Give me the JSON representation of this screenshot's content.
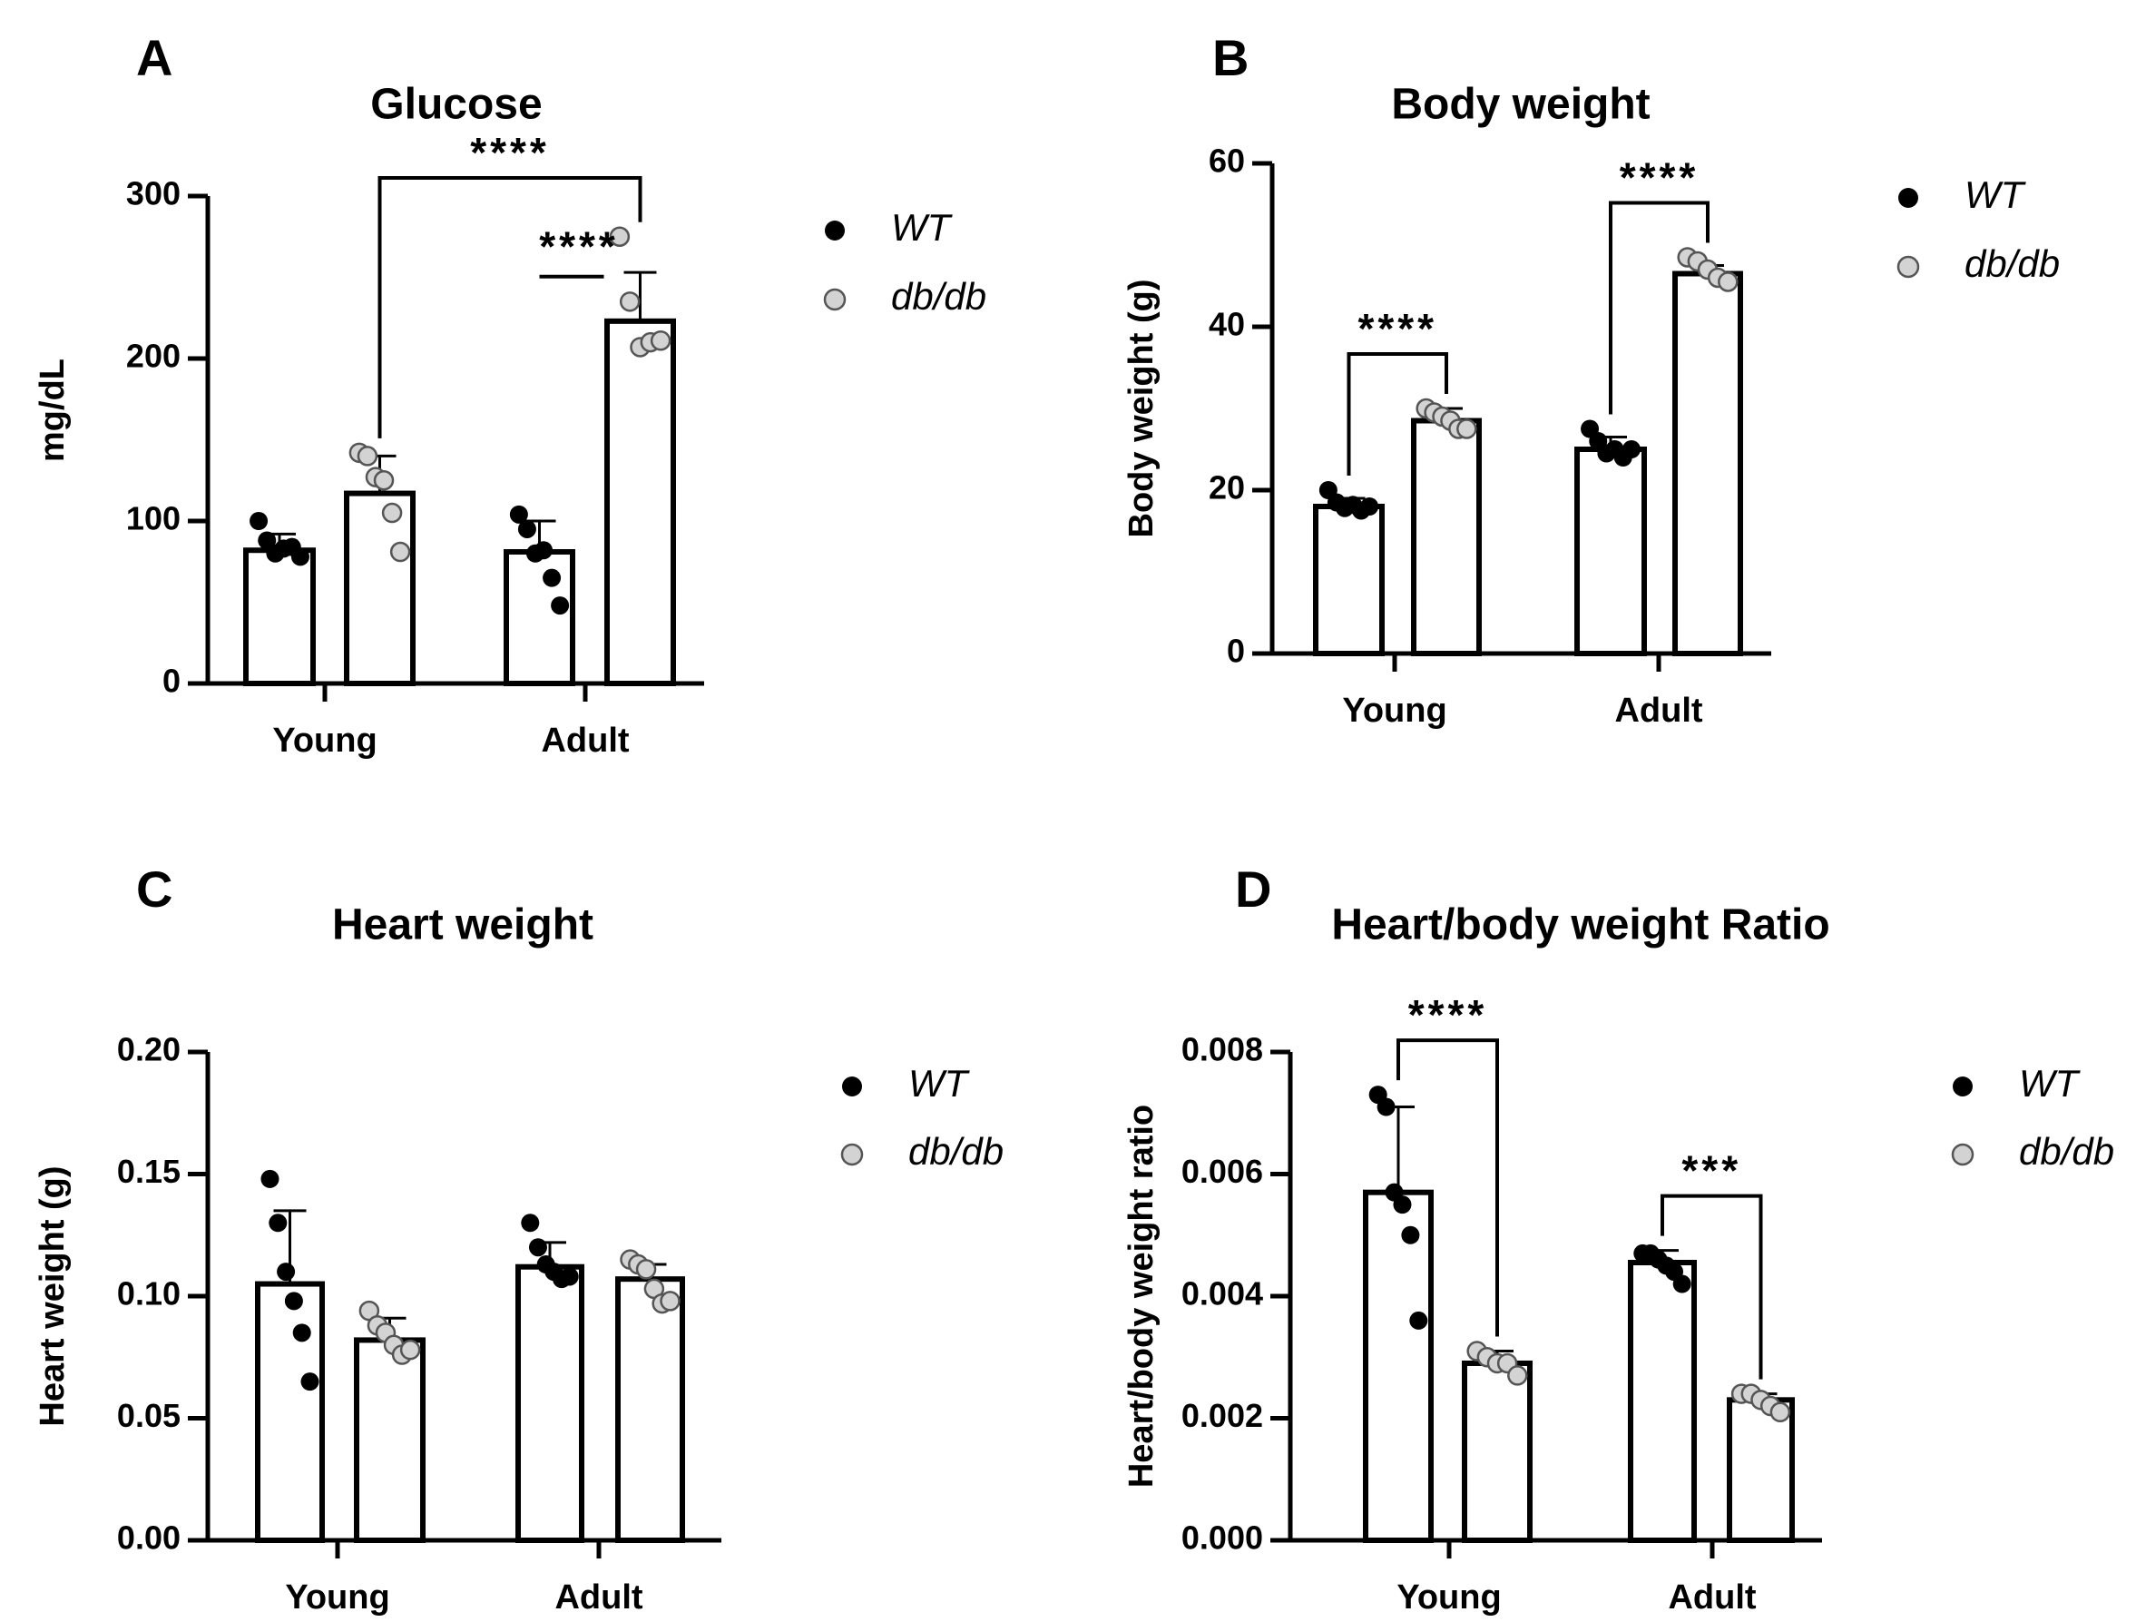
{
  "colors": {
    "wt": "#000000",
    "dbdb": "#d3d3d3",
    "axis": "#000000",
    "bar_fill": "#ffffff"
  },
  "chart_data": [
    {
      "panel": "A",
      "type": "bar",
      "title": "Glucose",
      "ylabel": "mg/dL",
      "ylim": [
        0,
        300
      ],
      "yticks": [
        0,
        100,
        200,
        300
      ],
      "ytick_labels": [
        "0",
        "100",
        "200",
        "300"
      ],
      "categories": [
        "Young",
        "Adult"
      ],
      "legend": "right",
      "series": [
        {
          "name": "WT",
          "values": [
            82,
            81
          ],
          "sd": [
            10,
            19
          ],
          "points": [
            [
              100,
              88,
              80,
              83,
              84,
              78
            ],
            [
              104,
              95,
              80,
              82,
              65,
              48
            ]
          ]
        },
        {
          "name": "db/db",
          "values": [
            117,
            223
          ],
          "sd": [
            23,
            30
          ],
          "points": [
            [
              142,
              140,
              127,
              125,
              105,
              81
            ],
            [
              275,
              235,
              207,
              210,
              211
            ]
          ]
        }
      ],
      "significance": [
        {
          "label": "****",
          "type": "bracket",
          "from": [
            0,
            1
          ],
          "to": [
            1,
            1
          ]
        },
        {
          "label": "****",
          "type": "line",
          "from": [
            1,
            0
          ],
          "to": [
            1,
            1
          ]
        }
      ]
    },
    {
      "panel": "B",
      "type": "bar",
      "title": "Body weight",
      "ylabel": "Body weight (g)",
      "ylim": [
        0,
        60
      ],
      "yticks": [
        0,
        20,
        40,
        60
      ],
      "ytick_labels": [
        "0",
        "20",
        "40",
        "60"
      ],
      "categories": [
        "Young",
        "Adult"
      ],
      "legend": "right",
      "series": [
        {
          "name": "WT",
          "values": [
            18,
            25
          ],
          "sd": [
            1,
            1.5
          ],
          "points": [
            [
              20,
              18.5,
              17.8,
              18.2,
              17.5,
              18
            ],
            [
              27.5,
              26,
              24.5,
              25,
              24,
              25
            ]
          ]
        },
        {
          "name": "db/db",
          "values": [
            28.5,
            46.5
          ],
          "sd": [
            1.5,
            1
          ],
          "points": [
            [
              30,
              29.5,
              29,
              28.5,
              27.5,
              27.5
            ],
            [
              48.5,
              48,
              47,
              46,
              45.5
            ]
          ]
        }
      ],
      "significance": [
        {
          "label": "****",
          "type": "bracket",
          "from": [
            0,
            0
          ],
          "to": [
            0,
            1
          ]
        },
        {
          "label": "****",
          "type": "bracket",
          "from": [
            1,
            0
          ],
          "to": [
            1,
            1
          ]
        }
      ]
    },
    {
      "panel": "C",
      "type": "bar",
      "title": "Heart weight",
      "ylabel": "Heart weight (g)",
      "ylim": [
        0,
        0.2
      ],
      "yticks": [
        0,
        0.05,
        0.1,
        0.15,
        0.2
      ],
      "ytick_labels": [
        "0.00",
        "0.05",
        "0.10",
        "0.15",
        "0.20"
      ],
      "categories": [
        "Young",
        "Adult"
      ],
      "legend": "right",
      "series": [
        {
          "name": "WT",
          "values": [
            0.105,
            0.112
          ],
          "sd": [
            0.03,
            0.01
          ],
          "points": [
            [
              0.148,
              0.13,
              0.11,
              0.098,
              0.085,
              0.065
            ],
            [
              0.13,
              0.12,
              0.113,
              0.11,
              0.107,
              0.108
            ]
          ]
        },
        {
          "name": "db/db",
          "values": [
            0.082,
            0.107
          ],
          "sd": [
            0.009,
            0.006
          ],
          "points": [
            [
              0.094,
              0.088,
              0.085,
              0.08,
              0.076,
              0.078
            ],
            [
              0.115,
              0.113,
              0.111,
              0.103,
              0.097,
              0.098
            ]
          ]
        }
      ],
      "significance": []
    },
    {
      "panel": "D",
      "type": "bar",
      "title": "Heart/body weight Ratio",
      "ylabel": "Heart/body weight ratio",
      "ylim": [
        0,
        0.008
      ],
      "yticks": [
        0,
        0.002,
        0.004,
        0.006,
        0.008
      ],
      "ytick_labels": [
        "0.000",
        "0.002",
        "0.004",
        "0.006",
        "0.008"
      ],
      "categories": [
        "Young",
        "Adult"
      ],
      "legend": "right",
      "series": [
        {
          "name": "WT",
          "values": [
            0.0057,
            0.00455
          ],
          "sd": [
            0.0014,
            0.0002
          ],
          "points": [
            [
              0.0073,
              0.0071,
              0.0057,
              0.0055,
              0.005,
              0.0036
            ],
            [
              0.0047,
              0.0047,
              0.0046,
              0.0045,
              0.0044,
              0.0042
            ]
          ]
        },
        {
          "name": "db/db",
          "values": [
            0.0029,
            0.0023
          ],
          "sd": [
            0.0002,
            0.0001
          ],
          "points": [
            [
              0.0031,
              0.003,
              0.0029,
              0.0029,
              0.0027
            ],
            [
              0.0024,
              0.0024,
              0.0023,
              0.0022,
              0.0021
            ]
          ]
        }
      ],
      "significance": [
        {
          "label": "****",
          "type": "bracket",
          "from": [
            0,
            0
          ],
          "to": [
            0,
            1
          ]
        },
        {
          "label": "***",
          "type": "bracket",
          "from": [
            1,
            0
          ],
          "to": [
            1,
            1
          ]
        }
      ]
    }
  ]
}
